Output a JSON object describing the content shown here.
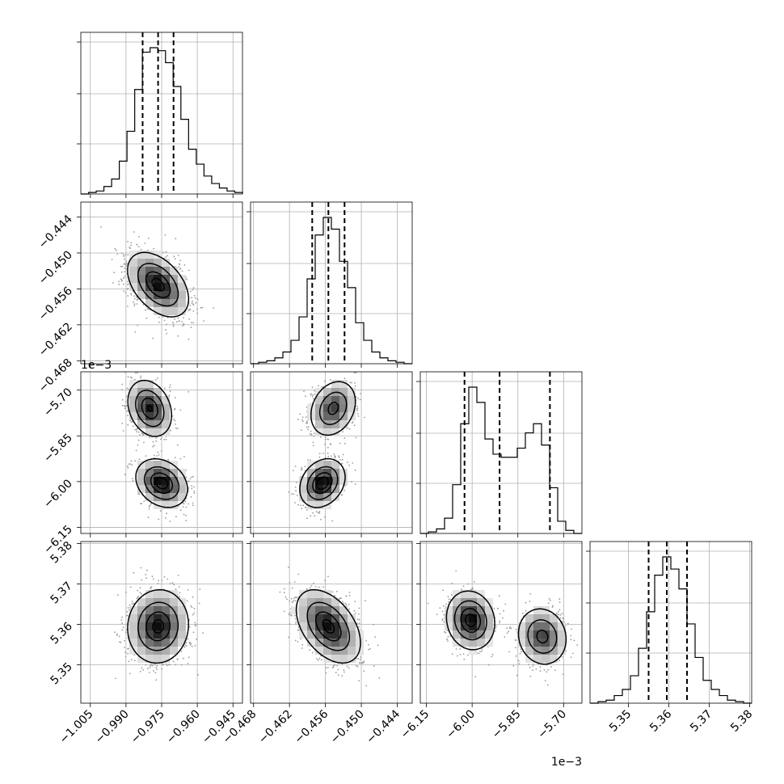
{
  "chart_data": {
    "type": "corner",
    "title": "",
    "colors": {
      "line": "#000000",
      "grid": "#b0b0b0",
      "points": "#9a9a9a",
      "density_max": "#000000"
    },
    "grid": true,
    "parameters": [
      {
        "index": 0,
        "range": [
          -1.009,
          -0.941
        ],
        "ticks": [
          -1.005,
          -0.99,
          -0.975,
          -0.96,
          -0.945
        ],
        "tick_labels": [
          "−1.005",
          "−0.990",
          "−0.975",
          "−0.960",
          "−0.945"
        ],
        "offset_text": "",
        "mean": -0.9765,
        "sd": 0.0065
      },
      {
        "index": 1,
        "range": [
          -0.4685,
          -0.4415
        ],
        "ticks": [
          -0.468,
          -0.462,
          -0.456,
          -0.45,
          -0.444
        ],
        "tick_labels": [
          "−0.468",
          "−0.462",
          "−0.456",
          "−0.450",
          "−0.444"
        ],
        "offset_text": "",
        "mean": -0.4555,
        "sd": 0.0027
      },
      {
        "index": 2,
        "range": [
          -6.17,
          -5.64
        ],
        "ticks": [
          -6.15,
          -6.0,
          -5.85,
          -5.7
        ],
        "tick_labels": [
          "−6.15",
          "−6.00",
          "−5.85",
          "−5.70"
        ],
        "offset_text": "1e−3"
      },
      {
        "index": 3,
        "range": [
          5.3405,
          5.3805
        ],
        "ticks": [
          5.35,
          5.36,
          5.37,
          5.38
        ],
        "tick_labels": [
          "5.35",
          "5.36",
          "5.37",
          "5.38"
        ],
        "offset_text": "",
        "mean": 5.3595,
        "sd": 0.0045
      }
    ],
    "quantiles": [
      [
        -0.983,
        -0.9765,
        -0.97
      ],
      [
        -0.4582,
        -0.4555,
        -0.4528
      ],
      [
        -6.025,
        -5.91,
        -5.745
      ],
      [
        5.355,
        5.3595,
        5.3645
      ]
    ],
    "histograms": [
      {
        "param": 0,
        "bins": [
          -1.009,
          -0.941
        ],
        "counts": [
          0,
          1,
          2,
          5,
          10,
          22,
          42,
          70,
          95,
          98,
          96,
          88,
          72,
          50,
          30,
          20,
          12,
          7,
          4,
          2,
          1
        ]
      },
      {
        "param": 1,
        "bins": [
          -0.4685,
          -0.4415
        ],
        "counts": [
          0,
          1,
          2,
          4,
          8,
          16,
          32,
          58,
          88,
          100,
          92,
          70,
          52,
          28,
          16,
          8,
          4,
          2,
          1,
          0
        ]
      },
      {
        "param": 2,
        "bins": [
          -6.17,
          -5.64
        ],
        "counts": [
          0,
          1,
          3,
          10,
          32,
          72,
          96,
          86,
          62,
          52,
          50,
          50,
          56,
          66,
          72,
          58,
          30,
          8,
          2,
          0
        ]
      },
      {
        "param": 3,
        "bins": [
          5.3405,
          5.3805
        ],
        "counts": [
          0,
          1,
          2,
          5,
          9,
          18,
          36,
          60,
          84,
          96,
          88,
          75,
          52,
          30,
          15,
          9,
          5,
          2,
          1,
          0
        ]
      }
    ],
    "joint": [
      {
        "x": 0,
        "y": 1,
        "components": [
          {
            "w": 1.0,
            "mx": -0.9765,
            "my": -0.4553,
            "sx": 0.0062,
            "sy": 0.0026,
            "rho": -0.45
          }
        ]
      },
      {
        "x": 0,
        "y": 2,
        "components": [
          {
            "w": 0.52,
            "mx": -0.975,
            "my": -6.005,
            "sx": 0.0052,
            "sy": 0.038,
            "rho": -0.25
          },
          {
            "w": 0.48,
            "mx": -0.98,
            "my": -5.76,
            "sx": 0.0045,
            "sy": 0.045,
            "rho": -0.25
          }
        ]
      },
      {
        "x": 1,
        "y": 2,
        "components": [
          {
            "w": 0.52,
            "mx": -0.4565,
            "my": -6.005,
            "sx": 0.0018,
            "sy": 0.038,
            "rho": 0.25
          },
          {
            "w": 0.48,
            "mx": -0.4547,
            "my": -5.76,
            "sx": 0.0019,
            "sy": 0.045,
            "rho": 0.25
          }
        ]
      },
      {
        "x": 0,
        "y": 3,
        "components": [
          {
            "w": 1.0,
            "mx": -0.9765,
            "my": 5.3595,
            "sx": 0.0062,
            "sy": 0.0044,
            "rho": 0.05
          }
        ]
      },
      {
        "x": 1,
        "y": 3,
        "components": [
          {
            "w": 1.0,
            "mx": -0.4555,
            "my": 5.3595,
            "sx": 0.0026,
            "sy": 0.0044,
            "rho": -0.45
          }
        ]
      },
      {
        "x": 2,
        "y": 3,
        "components": [
          {
            "w": 0.55,
            "mx": -6.005,
            "my": 5.361,
            "sx": 0.038,
            "sy": 0.0035,
            "rho": -0.1
          },
          {
            "w": 0.45,
            "mx": -5.77,
            "my": 5.357,
            "sx": 0.04,
            "sy": 0.0035,
            "rho": -0.1
          }
        ]
      }
    ]
  }
}
